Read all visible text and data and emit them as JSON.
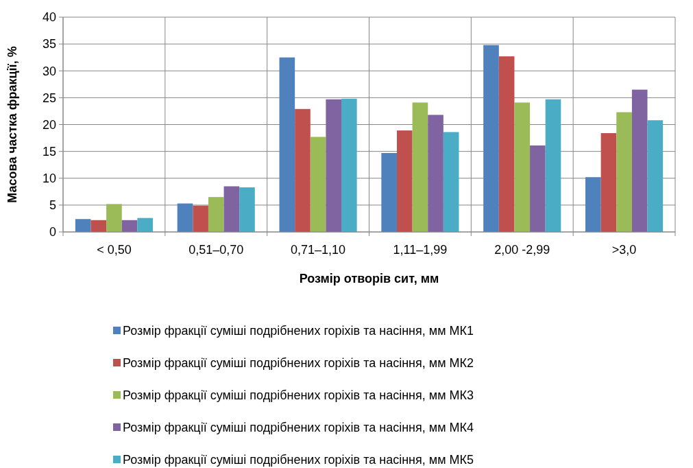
{
  "chart_data": {
    "type": "bar",
    "xlabel": "Розмір отворів сит, мм",
    "ylabel": "Масова частка фракції, %",
    "categories": [
      "< 0,50",
      "0,51–0,70",
      "0,71–1,10",
      "1,11–1,99",
      "2,00 -2,99",
      ">3,0"
    ],
    "series": [
      {
        "name": "Розмір фракції суміші подрібнених горіхів та насіння, мм МК1",
        "color": "#4f81bd",
        "values": [
          2.4,
          5.3,
          32.5,
          14.7,
          34.8,
          10.2
        ]
      },
      {
        "name": "Розмір фракції суміші подрібнених горіхів та насіння, мм МК2",
        "color": "#c0504d",
        "values": [
          2.2,
          4.9,
          22.9,
          18.9,
          32.7,
          18.4
        ]
      },
      {
        "name": "Розмір фракції суміші подрібнених горіхів та насіння, мм МК3",
        "color": "#9bbb59",
        "values": [
          5.2,
          6.5,
          17.7,
          24.1,
          24.1,
          22.3
        ]
      },
      {
        "name": "Розмір фракції суміші подрібнених горіхів та насіння, мм МК4",
        "color": "#8064a2",
        "values": [
          2.2,
          8.5,
          24.7,
          21.8,
          16.1,
          26.5
        ]
      },
      {
        "name": "Розмір фракції суміші подрібнених горіхів та насіння, мм МК5",
        "color": "#4bacc6",
        "values": [
          2.6,
          8.3,
          24.8,
          18.6,
          24.7,
          20.8
        ]
      }
    ],
    "ylim": [
      0,
      40
    ],
    "yticks": [
      0,
      5,
      10,
      15,
      20,
      25,
      30,
      35,
      40
    ],
    "grid": true,
    "legend": "bottom"
  }
}
